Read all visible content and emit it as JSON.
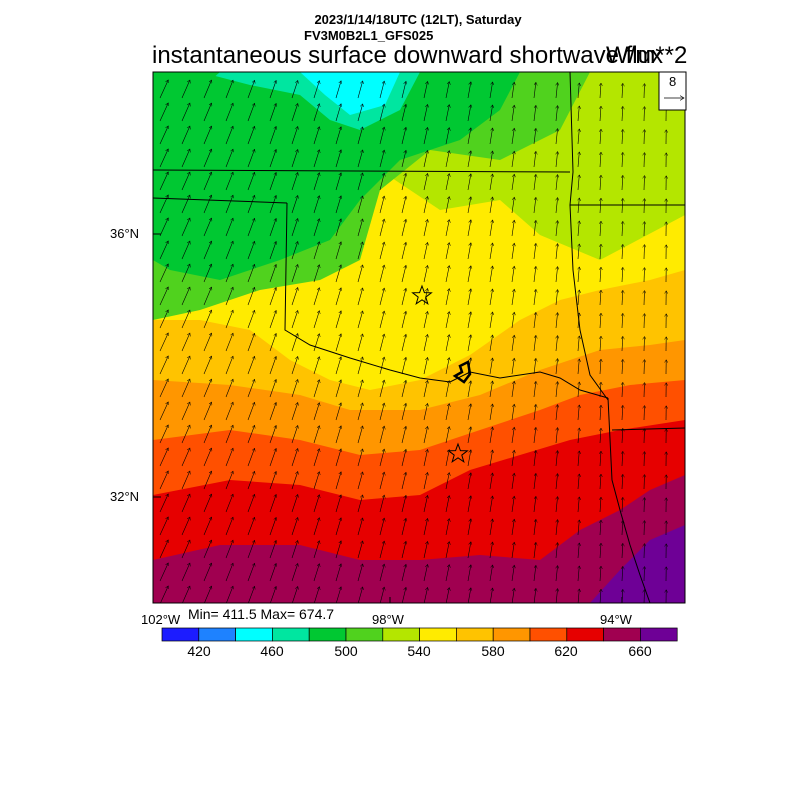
{
  "header": {
    "datetime": "2023/1/14/18UTC (12LT), Saturday",
    "model": "FV3M0B2L1_GFS025",
    "title": "instantaneous surface downward shortwave flux",
    "units": "W/m**2"
  },
  "reference_vector": {
    "label": "8"
  },
  "lat_labels": [
    "36°N",
    "32°N"
  ],
  "lon_labels": [
    "102°W",
    "98°W",
    "94°W"
  ],
  "stats": {
    "text": "Min= 411.5 Max= 674.7",
    "min": 411.5,
    "max": 674.7
  },
  "colorbar": {
    "colors": [
      "#1c1cff",
      "#1e82ff",
      "#00ffff",
      "#00e6a0",
      "#00c832",
      "#50d21e",
      "#b4e600",
      "#ffeb00",
      "#ffc300",
      "#ff9600",
      "#ff5000",
      "#e60000",
      "#a00050",
      "#6e0096"
    ],
    "labels": [
      "420",
      "460",
      "500",
      "540",
      "580",
      "620",
      "660"
    ]
  },
  "map_markers": [
    {
      "name": "star-marker-north"
    },
    {
      "name": "star-marker-south"
    }
  ]
}
